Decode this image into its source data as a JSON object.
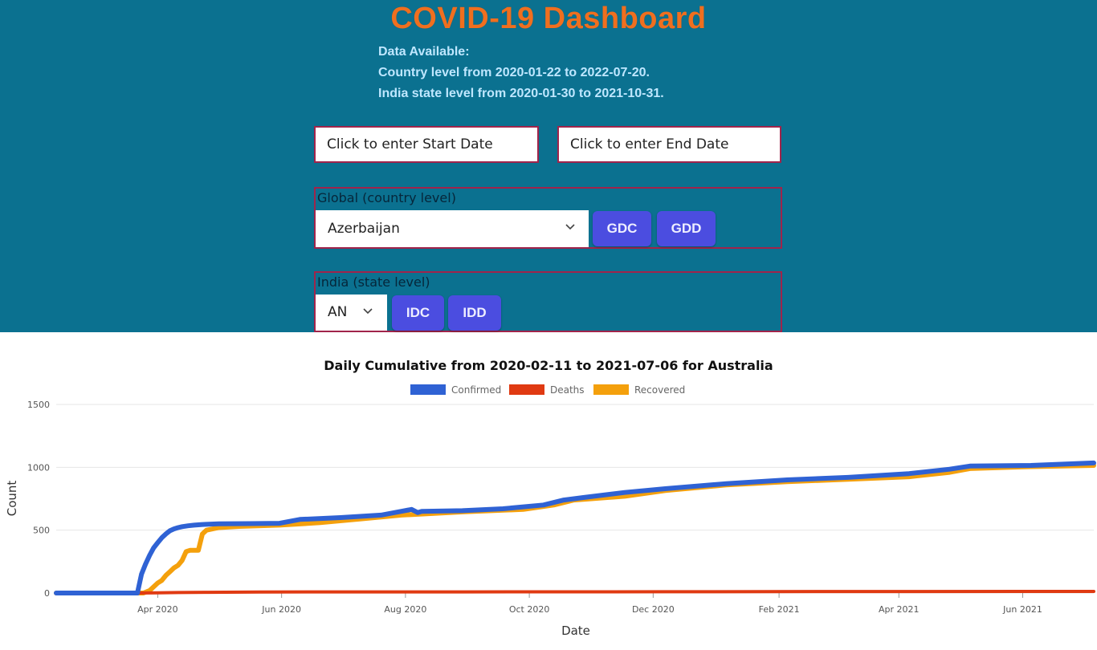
{
  "header": {
    "title": "COVID-19 Dashboard",
    "info_lines": [
      "Data Available:",
      "Country level from 2020-01-22 to 2022-07-20.",
      "India state level from 2020-01-30 to 2021-10-31."
    ]
  },
  "date_inputs": {
    "start_placeholder": "Click to enter Start Date",
    "end_placeholder": "Click to enter End Date"
  },
  "global": {
    "label": "Global (country level)",
    "selected_country": "Azerbaijan",
    "buttons": [
      "GDC",
      "GDD"
    ]
  },
  "india": {
    "label": "India (state level)",
    "selected_state": "AN",
    "buttons": [
      "IDC",
      "IDD"
    ]
  },
  "colors": {
    "header_bg": "#0b7190",
    "title": "#ef6f1f",
    "button": "#4b4de0",
    "confirmed": "#2f62d4",
    "deaths": "#e03a12",
    "recovered": "#f4a00c"
  },
  "chart_data": {
    "type": "line",
    "title": "Daily Cumulative from 2020-02-11 to 2021-07-06 for Australia",
    "xlabel": "Date",
    "ylabel": "Count",
    "ylim": [
      0,
      1500
    ],
    "yticks": [
      0,
      500,
      1000,
      1500
    ],
    "xticks": [
      "Apr 2020",
      "Jun 2020",
      "Aug 2020",
      "Oct 2020",
      "Dec 2020",
      "Feb 2021",
      "Apr 2021",
      "Jun 2021"
    ],
    "xtick_days": [
      50,
      111,
      172,
      233,
      294,
      356,
      415,
      476
    ],
    "x_range_days": [
      0,
      511
    ],
    "legend_position": "top-center",
    "series": [
      {
        "name": "Confirmed",
        "x_days": [
          0,
          40,
          42,
          44,
          46,
          48,
          50,
          52,
          54,
          56,
          58,
          60,
          62,
          65,
          68,
          72,
          80,
          95,
          110,
          120,
          140,
          160,
          170,
          175,
          178,
          180,
          200,
          220,
          240,
          250,
          260,
          280,
          300,
          330,
          360,
          390,
          420,
          440,
          450,
          480,
          511
        ],
        "values": [
          0,
          0,
          150,
          230,
          300,
          360,
          400,
          440,
          470,
          495,
          510,
          520,
          528,
          535,
          540,
          545,
          550,
          552,
          555,
          585,
          600,
          620,
          650,
          665,
          640,
          650,
          655,
          670,
          700,
          740,
          760,
          800,
          830,
          870,
          900,
          920,
          950,
          985,
          1010,
          1015,
          1035
        ]
      },
      {
        "name": "Deaths",
        "x_days": [
          0,
          40,
          50,
          60,
          75,
          100,
          200,
          300,
          400,
          511
        ],
        "values": [
          0,
          0,
          2,
          4,
          6,
          8,
          9,
          10,
          12,
          13
        ]
      },
      {
        "name": "Recovered",
        "x_days": [
          0,
          43,
          46,
          48,
          50,
          52,
          54,
          56,
          58,
          60,
          62,
          64,
          66,
          70,
          72,
          74,
          80,
          90,
          110,
          130,
          150,
          170,
          200,
          230,
          245,
          255,
          280,
          300,
          330,
          360,
          390,
          420,
          440,
          450,
          480,
          511
        ],
        "values": [
          0,
          0,
          20,
          50,
          80,
          100,
          140,
          170,
          200,
          220,
          260,
          330,
          340,
          340,
          470,
          500,
          520,
          530,
          540,
          560,
          590,
          620,
          645,
          665,
          700,
          740,
          770,
          815,
          860,
          885,
          905,
          925,
          960,
          990,
          1005,
          1015
        ]
      }
    ]
  }
}
